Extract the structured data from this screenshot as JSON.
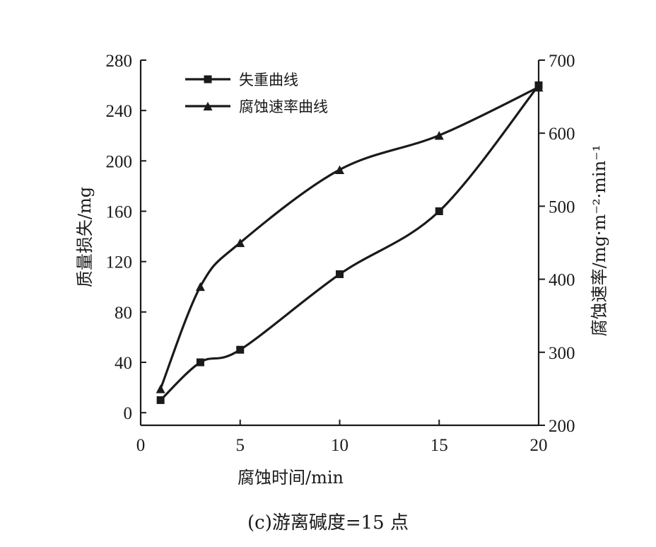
{
  "caption": "(c)游离碱度=15 点",
  "chart_data": {
    "type": "line",
    "xlabel": "腐蚀时间/min",
    "ylabel_left": "质量损失/mg",
    "ylabel_right": "腐蚀速率/mg·m⁻²·min⁻¹",
    "xlim": [
      0,
      20
    ],
    "ylim_left": [
      -10,
      280
    ],
    "ylim_right": [
      200,
      700
    ],
    "x_ticks": [
      0,
      5,
      10,
      15,
      20
    ],
    "y_ticks_left": [
      0,
      40,
      80,
      120,
      160,
      200,
      240,
      280
    ],
    "y_ticks_right": [
      200,
      300,
      400,
      500,
      600,
      700
    ],
    "grid": false,
    "legend_position": "top-left",
    "series": [
      {
        "name": "失重曲线",
        "axis": "left",
        "marker": "square",
        "x": [
          1,
          3,
          5,
          10,
          15,
          20
        ],
        "y": [
          10,
          40,
          50,
          110,
          160,
          260
        ]
      },
      {
        "name": "腐蚀速率曲线",
        "axis": "right",
        "marker": "triangle",
        "x": [
          1,
          3,
          5,
          10,
          15,
          20
        ],
        "y": [
          250,
          390,
          450,
          550,
          597,
          663
        ]
      }
    ]
  }
}
